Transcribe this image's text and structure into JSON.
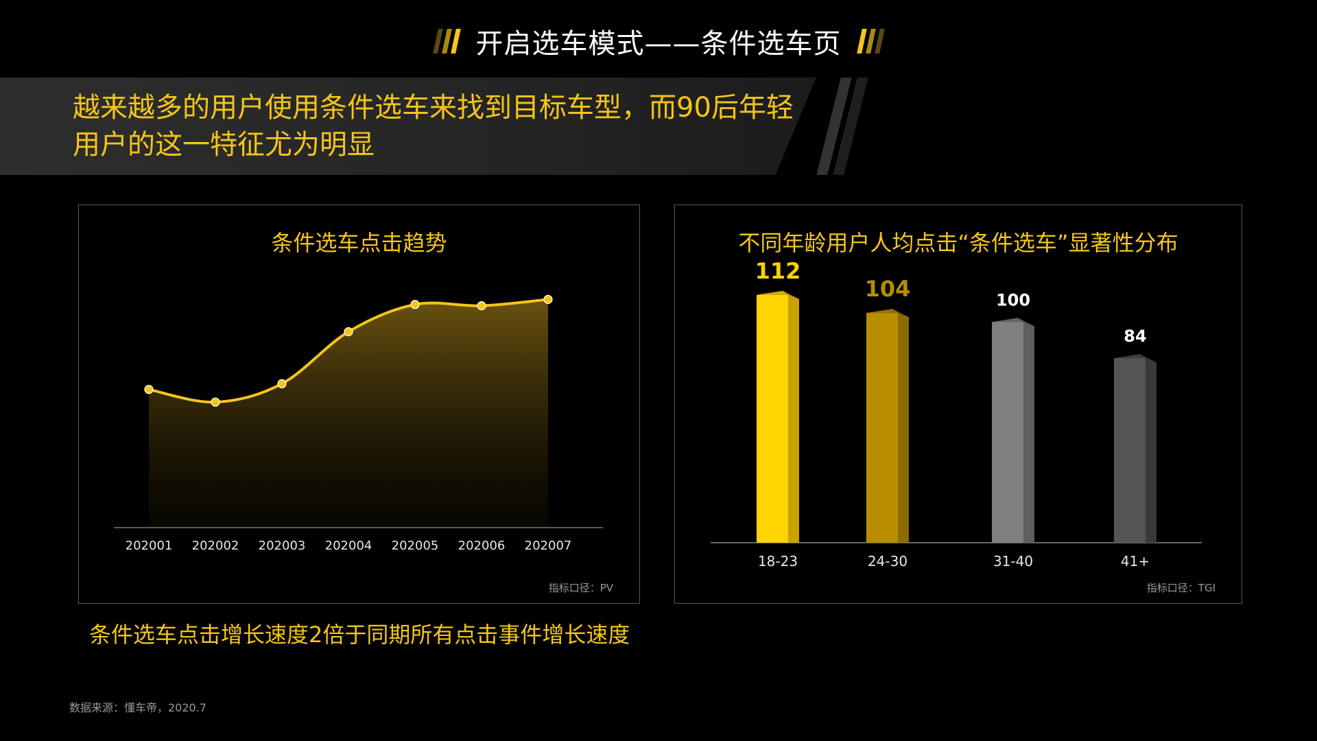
{
  "page": {
    "title": "开启选车模式——条件选车页",
    "headline_line1": "越来越多的用户使用条件选车来找到目标车型，而90后年轻",
    "headline_line2": "用户的这一特征尤为明显",
    "footnote": "条件选车点击增长速度2倍于同期所有点击事件增长速度",
    "source": "数据来源：懂车帝，2020.7"
  },
  "colors": {
    "accent": "#f5c518",
    "bar_18_23": "#ffd400",
    "bar_24_30": "#b88d00",
    "bar_31_40": "#808080",
    "bar_41": "#555555"
  },
  "chart_data": [
    {
      "type": "area",
      "title": "条件选车点击趋势",
      "note": "指标口径：PV",
      "categories": [
        "202001",
        "202002",
        "202003",
        "202004",
        "202005",
        "202006",
        "202007"
      ],
      "values": [
        100,
        80,
        109,
        191,
        234,
        232,
        242
      ],
      "ylim": [
        -118,
        250
      ]
    },
    {
      "type": "bar",
      "title": "不同年龄用户人均点击“条件选车”显著性分布",
      "note": "指标口径：TGI",
      "categories": [
        "18-23",
        "24-30",
        "31-40",
        "41+"
      ],
      "values": [
        112,
        104,
        100,
        84
      ],
      "value_labels": [
        "112",
        "104",
        "100",
        "84"
      ],
      "ylim": [
        0,
        125
      ]
    }
  ]
}
